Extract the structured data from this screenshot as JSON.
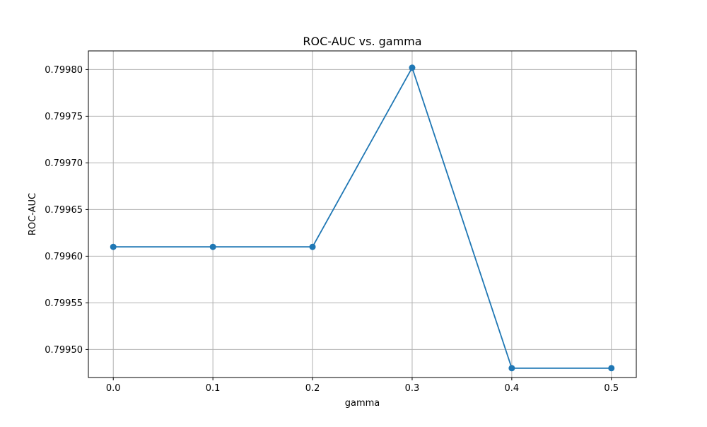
{
  "chart_data": {
    "type": "line",
    "title": "ROC-AUC vs. gamma",
    "xlabel": "gamma",
    "ylabel": "ROC-AUC",
    "x": [
      0.0,
      0.1,
      0.2,
      0.3,
      0.4,
      0.5
    ],
    "x_tick_labels": [
      "0.0",
      "0.1",
      "0.2",
      "0.3",
      "0.4",
      "0.5"
    ],
    "y_ticks": [
      0.7995,
      0.79955,
      0.7996,
      0.79965,
      0.7997,
      0.79975,
      0.7998
    ],
    "y_tick_labels": [
      "0.79950",
      "0.79955",
      "0.79960",
      "0.79965",
      "0.79970",
      "0.79975",
      "0.79980"
    ],
    "xlim": [
      -0.025,
      0.525
    ],
    "ylim": [
      0.79947,
      0.79982
    ],
    "grid": true,
    "series": [
      {
        "values": [
          0.79961,
          0.79961,
          0.79961,
          0.799802,
          0.79948,
          0.79948
        ],
        "color": "#1f77b4",
        "marker": "circle"
      }
    ]
  }
}
